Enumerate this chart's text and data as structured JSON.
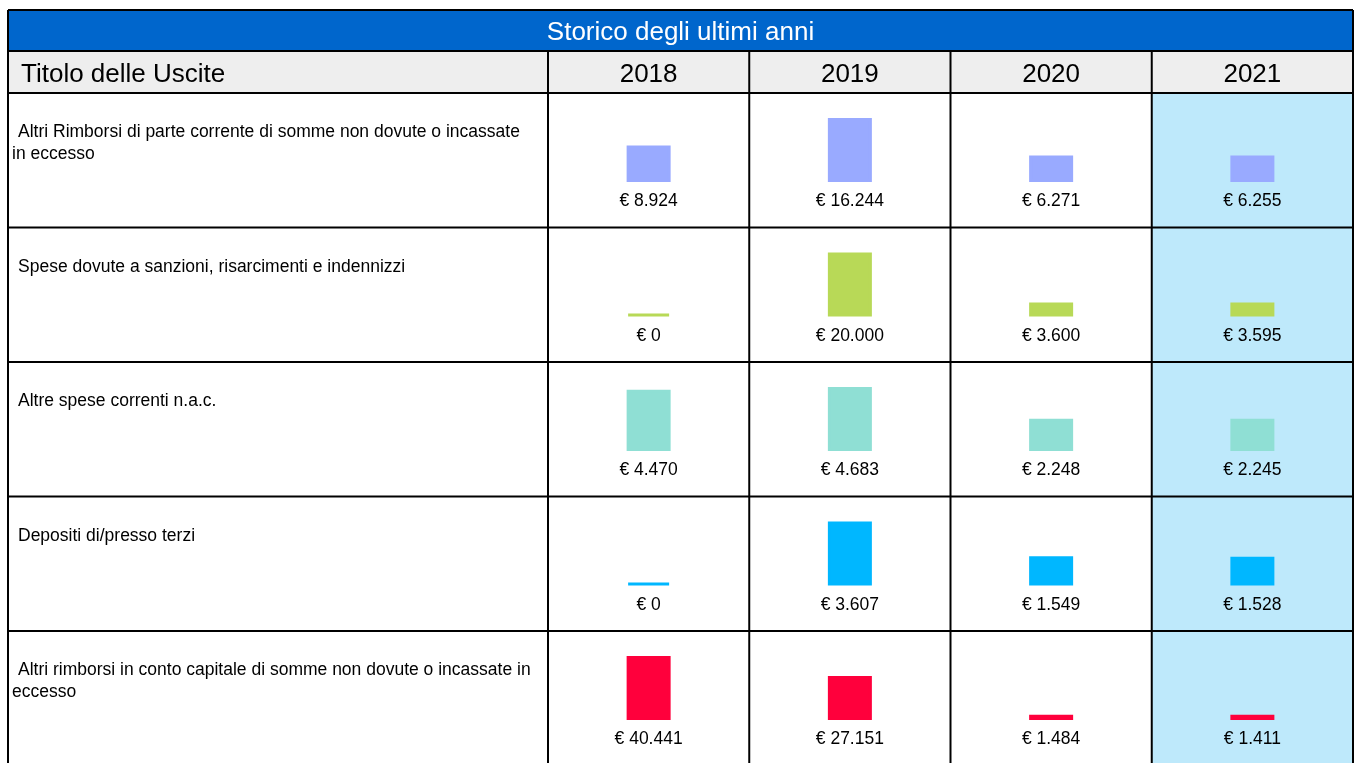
{
  "chart_data": [
    {
      "type": "bar",
      "title": "Storico degli ultimi anni",
      "annotations": [
        "Titolo delle Uscite"
      ],
      "ylabel": "Altri Rimborsi di parte corrente di somme non dovute o incassate in eccesso",
      "categories": [
        "2018",
        "2019",
        "2020",
        "2021"
      ],
      "values": [
        8924,
        16244,
        6271,
        6255
      ],
      "value_labels": [
        "€ 8.924",
        "€ 16.244",
        "€ 6.271",
        "€ 6.255"
      ],
      "color": "#99aaff",
      "bands": [
        {
          "axis": "x",
          "from": "2021",
          "to": "2021",
          "color": "#bee9fb"
        }
      ],
      "tick_labels": "x"
    },
    {
      "type": "bar",
      "ylabel": "Spese dovute a sanzioni, risarcimenti e indennizzi",
      "categories": [
        "2018",
        "2019",
        "2020",
        "2021"
      ],
      "values": [
        0,
        20000,
        3600,
        3595
      ],
      "value_labels": [
        "€ 0",
        "€ 20.000",
        "€ 3.600",
        "€ 3.595"
      ],
      "color": "#b8d957",
      "bands": [
        {
          "axis": "x",
          "from": "2021",
          "to": "2021",
          "color": "#bee9fb"
        }
      ],
      "tick_labels": false
    },
    {
      "type": "bar",
      "ylabel": "Altre spese correnti n.a.c.",
      "categories": [
        "2018",
        "2019",
        "2020",
        "2021"
      ],
      "values": [
        4470,
        4683,
        2248,
        2245
      ],
      "value_labels": [
        "€ 4.470",
        "€ 4.683",
        "€ 2.248",
        "€ 2.245"
      ],
      "color": "#8fdfd4",
      "bands": [
        {
          "axis": "x",
          "from": "2021",
          "to": "2021",
          "color": "#bee9fb"
        }
      ],
      "tick_labels": false
    },
    {
      "type": "bar",
      "ylabel": "Depositi di/presso terzi",
      "categories": [
        "2018",
        "2019",
        "2020",
        "2021"
      ],
      "values": [
        0,
        3607,
        1549,
        1528
      ],
      "value_labels": [
        "€ 0",
        "€ 3.607",
        "€ 1.549",
        "€ 1.528"
      ],
      "color": "#00b7ff",
      "bands": [
        {
          "axis": "x",
          "from": "2021",
          "to": "2021",
          "color": "#bee9fb"
        }
      ],
      "tick_labels": false
    },
    {
      "type": "bar",
      "ylabel": "Altri rimborsi in conto capitale di somme non dovute o incassate in eccesso",
      "categories": [
        "2018",
        "2019",
        "2020",
        "2021"
      ],
      "values": [
        40441,
        27151,
        1484,
        1411
      ],
      "value_labels": [
        "€ 40.441",
        "€ 27.151",
        "€ 1.484",
        "€ 1.411"
      ],
      "color": "#ff003c",
      "bands": [
        {
          "axis": "x",
          "from": "2021",
          "to": "2021",
          "color": "#bee9fb"
        }
      ],
      "tick_labels": false
    }
  ]
}
